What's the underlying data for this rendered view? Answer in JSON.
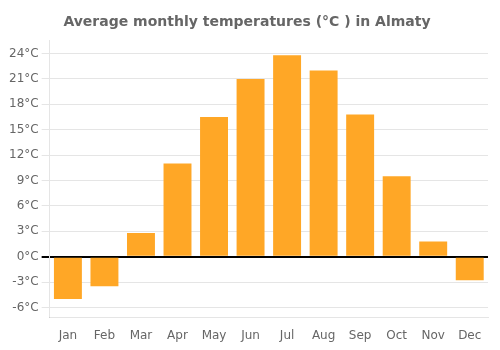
{
  "chart_data": {
    "type": "bar",
    "title": "Average monthly temperatures (°C ) in Almaty",
    "categories": [
      "Jan",
      "Feb",
      "Mar",
      "Apr",
      "May",
      "Jun",
      "Jul",
      "Aug",
      "Sep",
      "Oct",
      "Nov",
      "Dec"
    ],
    "values": [
      -5.0,
      -3.5,
      2.8,
      11.0,
      16.5,
      21.0,
      23.8,
      22.0,
      16.8,
      9.5,
      1.8,
      -2.8
    ],
    "color": "#FFA726",
    "ylim": [
      -7.2,
      25.5
    ],
    "yticks": [
      {
        "value": -6,
        "label": "-6°C"
      },
      {
        "value": -3,
        "label": "-3°C"
      },
      {
        "value": 0,
        "label": "0°C"
      },
      {
        "value": 3,
        "label": "3°C"
      },
      {
        "value": 6,
        "label": "6°C"
      },
      {
        "value": 9,
        "label": "9°C"
      },
      {
        "value": 12,
        "label": "12°C"
      },
      {
        "value": 15,
        "label": "15°C"
      },
      {
        "value": 18,
        "label": "18°C"
      },
      {
        "value": 21,
        "label": "21°C"
      },
      {
        "value": 24,
        "label": "24°C"
      }
    ],
    "grid": true
  }
}
